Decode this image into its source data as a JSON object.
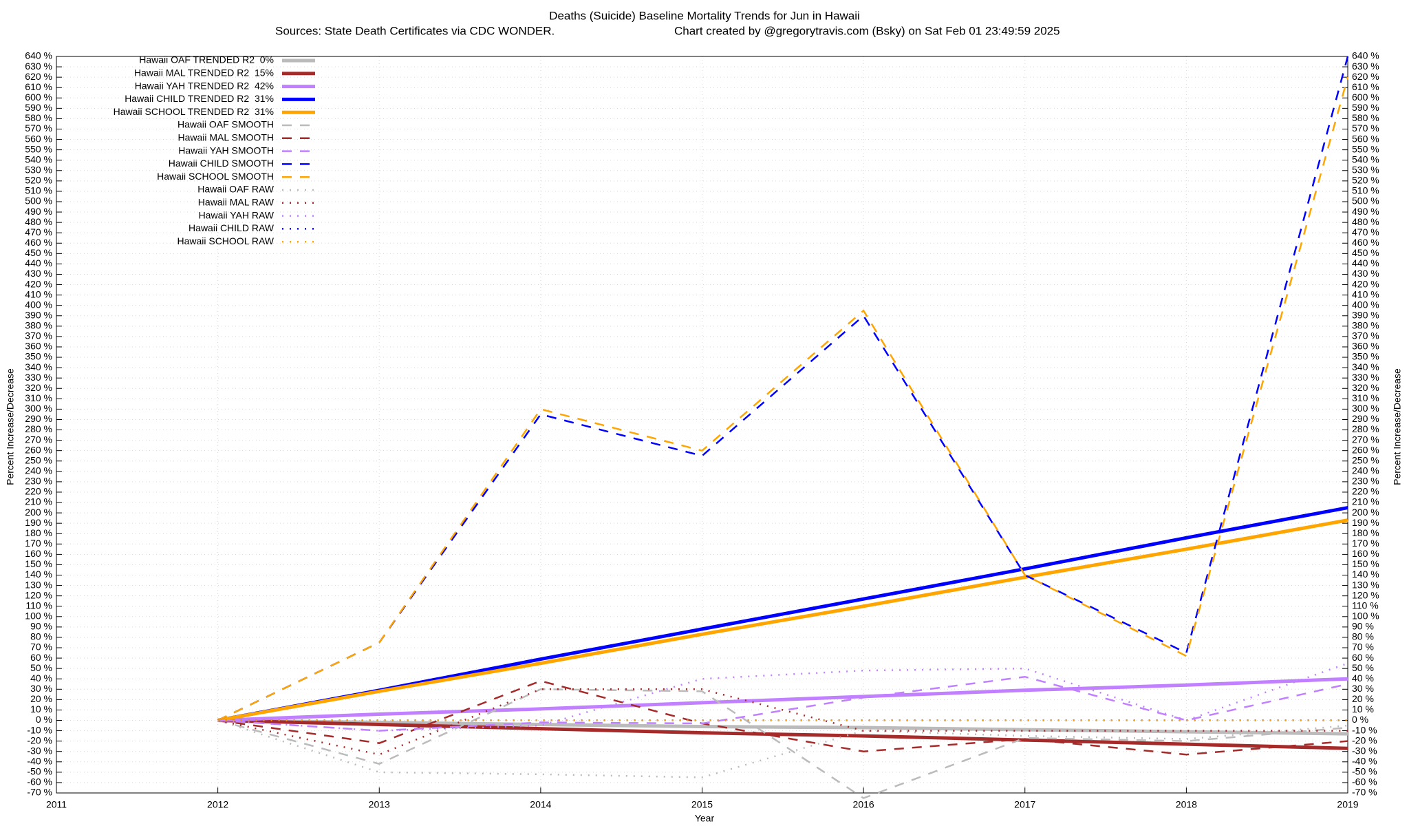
{
  "chart_data": {
    "type": "line",
    "title": "Deaths (Suicide)  Baseline Mortality Trends for Jun in Hawaii",
    "subtitle": "Sources: State Death Certificates via CDC WONDER.",
    "credit": "Chart created by @gregorytravis.com (Bsky) on Sat Feb 01 23:49:59 2025",
    "xlabel": "Year",
    "ylabel": "Percent Increase/Decrease",
    "grid": true,
    "legend": "top-left",
    "x": [
      2012,
      2013,
      2014,
      2015,
      2016,
      2017,
      2018,
      2019
    ],
    "xlim": [
      2011,
      2019
    ],
    "xticks": [
      2011,
      2012,
      2013,
      2014,
      2015,
      2016,
      2017,
      2018,
      2019
    ],
    "ylim": [
      -70,
      640
    ],
    "yticks": [
      {
        "value": -70,
        "label": "-70 %"
      },
      {
        "value": -60,
        "label": "-60 %"
      },
      {
        "value": -50,
        "label": "-50 %"
      },
      {
        "value": -40,
        "label": "-40 %"
      },
      {
        "value": -30,
        "label": "-30 %"
      },
      {
        "value": -20,
        "label": "-20 %"
      },
      {
        "value": -10,
        "label": "-10 %"
      },
      {
        "value": 0,
        "label": "0 %"
      },
      {
        "value": 10,
        "label": "10 %"
      },
      {
        "value": 20,
        "label": "20 %"
      },
      {
        "value": 30,
        "label": "30 %"
      },
      {
        "value": 40,
        "label": "40 %"
      },
      {
        "value": 50,
        "label": "50 %"
      },
      {
        "value": 60,
        "label": "60 %"
      },
      {
        "value": 70,
        "label": "70 %"
      },
      {
        "value": 80,
        "label": "80 %"
      },
      {
        "value": 90,
        "label": "90 %"
      },
      {
        "value": 100,
        "label": "100 %"
      },
      {
        "value": 110,
        "label": "110 %"
      },
      {
        "value": 120,
        "label": "120 %"
      },
      {
        "value": 130,
        "label": "130 %"
      },
      {
        "value": 140,
        "label": "140 %"
      },
      {
        "value": 150,
        "label": "150 %"
      },
      {
        "value": 160,
        "label": "160 %"
      },
      {
        "value": 170,
        "label": "170 %"
      },
      {
        "value": 180,
        "label": "180 %"
      },
      {
        "value": 190,
        "label": "190 %"
      },
      {
        "value": 200,
        "label": "200 %"
      },
      {
        "value": 210,
        "label": "210 %"
      },
      {
        "value": 220,
        "label": "220 %"
      },
      {
        "value": 230,
        "label": "230 %"
      },
      {
        "value": 240,
        "label": "240 %"
      },
      {
        "value": 250,
        "label": "250 %"
      },
      {
        "value": 260,
        "label": "260 %"
      },
      {
        "value": 270,
        "label": "270 %"
      },
      {
        "value": 280,
        "label": "280 %"
      },
      {
        "value": 290,
        "label": "290 %"
      },
      {
        "value": 300,
        "label": "300 %"
      },
      {
        "value": 310,
        "label": "310 %"
      },
      {
        "value": 320,
        "label": "320 %"
      },
      {
        "value": 330,
        "label": "330 %"
      },
      {
        "value": 340,
        "label": "340 %"
      },
      {
        "value": 350,
        "label": "350 %"
      },
      {
        "value": 360,
        "label": "360 %"
      },
      {
        "value": 370,
        "label": "370 %"
      },
      {
        "value": 380,
        "label": "380 %"
      },
      {
        "value": 390,
        "label": "390 %"
      },
      {
        "value": 400,
        "label": "400 %"
      },
      {
        "value": 410,
        "label": "410 %"
      },
      {
        "value": 420,
        "label": "420 %"
      },
      {
        "value": 430,
        "label": "430 %"
      },
      {
        "value": 440,
        "label": "440 %"
      },
      {
        "value": 450,
        "label": "450 %"
      },
      {
        "value": 460,
        "label": "460 %"
      },
      {
        "value": 470,
        "label": "470 %"
      },
      {
        "value": 480,
        "label": "480 %"
      },
      {
        "value": 490,
        "label": "490 %"
      },
      {
        "value": 500,
        "label": "500 %"
      },
      {
        "value": 510,
        "label": "510 %"
      },
      {
        "value": 520,
        "label": "520 %"
      },
      {
        "value": 530,
        "label": "530 %"
      },
      {
        "value": 540,
        "label": "540 %"
      },
      {
        "value": 550,
        "label": "550 %"
      },
      {
        "value": 560,
        "label": "560 %"
      },
      {
        "value": 570,
        "label": "570 %"
      },
      {
        "value": 580,
        "label": "580 %"
      },
      {
        "value": 590,
        "label": "590 %"
      },
      {
        "value": 600,
        "label": "600 %"
      },
      {
        "value": 610,
        "label": "610 %"
      },
      {
        "value": 620,
        "label": "620 %"
      },
      {
        "value": 630,
        "label": "630 %"
      },
      {
        "value": 640,
        "label": "640 %"
      }
    ],
    "series": [
      {
        "name": "Hawaii OAF TRENDED R2  0%",
        "color": "#bbbbbb",
        "style": "solid",
        "values": [
          0,
          -2,
          -4,
          -6,
          -7,
          -9,
          -11,
          -13
        ]
      },
      {
        "name": "Hawaii MAL TRENDED R2  15%",
        "color": "#a52a2a",
        "style": "solid",
        "values": [
          0,
          -4,
          -8,
          -12,
          -15,
          -19,
          -23,
          -27
        ]
      },
      {
        "name": "Hawaii YAH TRENDED R2  42%",
        "color": "#c080ff",
        "style": "solid",
        "values": [
          0,
          6,
          11,
          17,
          23,
          29,
          34,
          40
        ]
      },
      {
        "name": "Hawaii CHILD TRENDED R2  31%",
        "color": "#0000ff",
        "style": "solid",
        "values": [
          0,
          29,
          59,
          88,
          117,
          146,
          176,
          205
        ]
      },
      {
        "name": "Hawaii SCHOOL TRENDED R2  31%",
        "color": "#ffa500",
        "style": "solid",
        "values": [
          0,
          28,
          55,
          83,
          110,
          138,
          165,
          193
        ]
      },
      {
        "name": "Hawaii OAF SMOOTH",
        "color": "#bbbbbb",
        "style": "dashed",
        "values": [
          0,
          -42,
          30,
          28,
          -75,
          -17,
          -20,
          -7
        ]
      },
      {
        "name": "Hawaii MAL SMOOTH",
        "color": "#a52a2a",
        "style": "dashed",
        "values": [
          0,
          -22,
          38,
          -3,
          -30,
          -18,
          -33,
          -20
        ]
      },
      {
        "name": "Hawaii YAH SMOOTH",
        "color": "#c080ff",
        "style": "dashed",
        "values": [
          0,
          -10,
          -2,
          -3,
          22,
          42,
          0,
          35
        ]
      },
      {
        "name": "Hawaii CHILD SMOOTH",
        "color": "#0000ff",
        "style": "dashed",
        "values": [
          0,
          75,
          295,
          255,
          390,
          140,
          65,
          640
        ]
      },
      {
        "name": "Hawaii SCHOOL SMOOTH",
        "color": "#ffa500",
        "style": "dashed",
        "values": [
          0,
          75,
          300,
          260,
          395,
          140,
          62,
          620
        ]
      },
      {
        "name": "Hawaii OAF RAW",
        "color": "#bbbbbb",
        "style": "dotted",
        "values": [
          0,
          -50,
          -52,
          -55,
          -10,
          -15,
          -18,
          -5
        ]
      },
      {
        "name": "Hawaii MAL RAW",
        "color": "#a52a2a",
        "style": "dotted",
        "values": [
          0,
          -33,
          30,
          30,
          -10,
          -10,
          -10,
          -10
        ]
      },
      {
        "name": "Hawaii YAH RAW",
        "color": "#c080ff",
        "style": "dotted",
        "values": [
          0,
          -10,
          -5,
          40,
          48,
          50,
          0,
          55
        ]
      },
      {
        "name": "Hawaii CHILD RAW",
        "color": "#0000ff",
        "style": "dotted",
        "values": [
          0,
          0,
          0,
          0,
          0,
          0,
          0,
          0
        ]
      },
      {
        "name": "Hawaii SCHOOL RAW",
        "color": "#ffa500",
        "style": "dotted",
        "values": [
          0,
          0,
          0,
          0,
          0,
          0,
          0,
          0
        ]
      }
    ]
  }
}
